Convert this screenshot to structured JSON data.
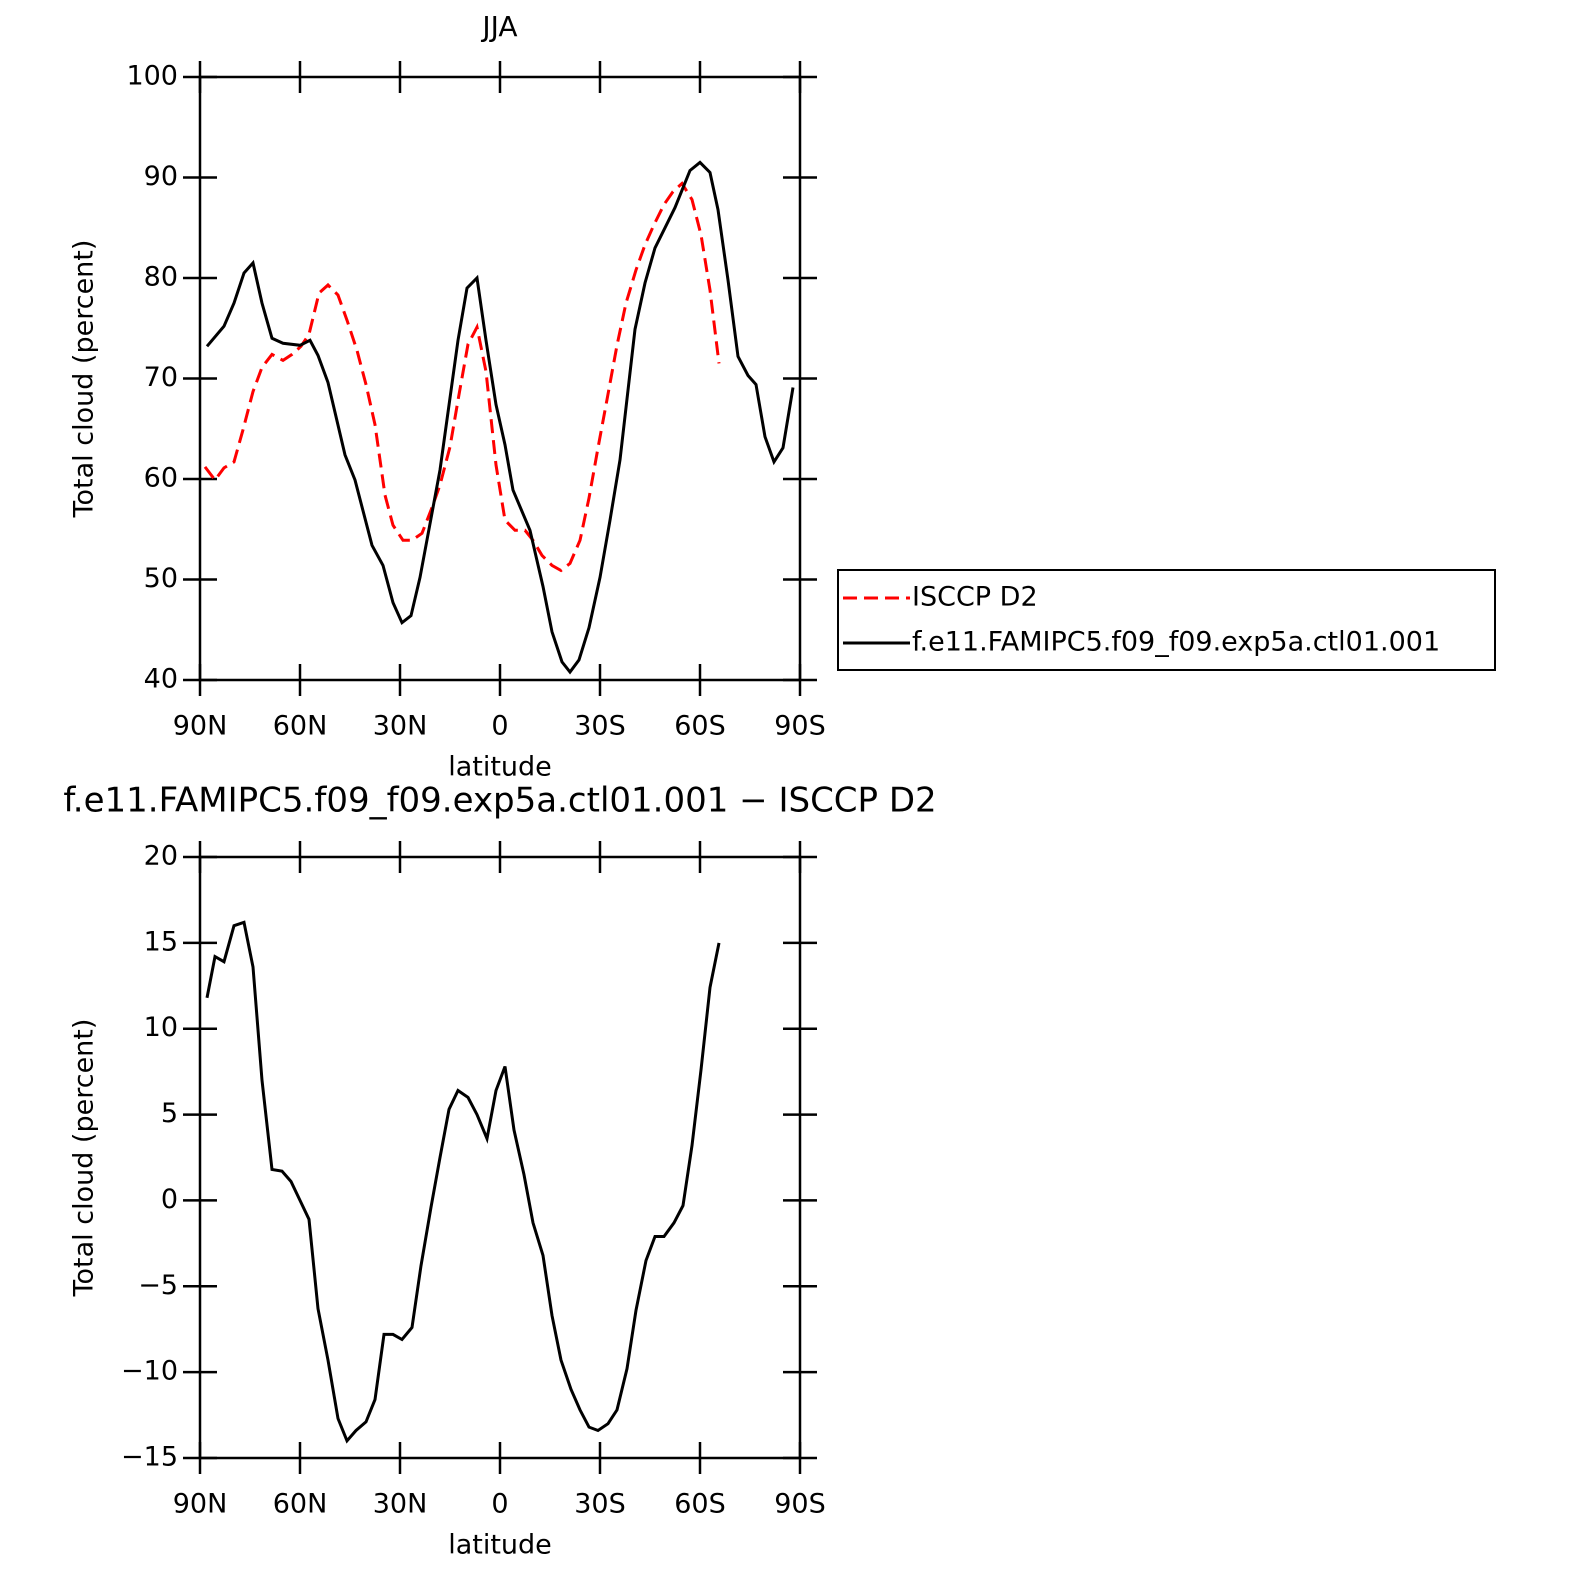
{
  "chart_data": [
    {
      "type": "line",
      "title": "JJA",
      "x_label": "latitude",
      "y_label": "Total cloud (percent)",
      "xlim": [
        90,
        -90
      ],
      "xticks": [
        {
          "value": 90,
          "label": "90N"
        },
        {
          "value": 60,
          "label": "60N"
        },
        {
          "value": 30,
          "label": "30N"
        },
        0,
        {
          "value": -30,
          "label": "30S"
        },
        {
          "value": -60,
          "label": "60S"
        },
        {
          "value": -90,
          "label": "90S"
        }
      ],
      "ylim": [
        40,
        100
      ],
      "yticks": [
        40,
        50,
        60,
        70,
        80,
        90,
        100
      ],
      "legend": "right",
      "series": [
        {
          "name": "ISCCP D2",
          "color": "#ff0000",
          "dashed": true,
          "x": [
            88.5,
            85.5,
            82.8,
            79.8,
            77.1,
            74.1,
            71.4,
            68.4,
            65.1,
            62.4,
            59.7,
            57.3,
            54.3,
            51.6,
            48.6,
            45.9,
            42.9,
            40.2,
            37.5,
            34.5,
            32.1,
            29.1,
            26.4,
            23.4,
            20.7,
            18,
            15,
            12.3,
            9.6,
            6.9,
            4.2,
            1.2,
            -1.5,
            -4.5,
            -7.5,
            -9.9,
            -12.6,
            -15.6,
            -18.3,
            -21,
            -24,
            -26.7,
            -29.4,
            -32.1,
            -35.1,
            -37.8,
            -40.8,
            -43.5,
            -46.2,
            -49.2,
            -51.9,
            -54.6,
            -57.6,
            -60.3,
            -63,
            -65.7
          ],
          "values": [
            61.2,
            59.9,
            61.1,
            61.7,
            64.9,
            68.7,
            71.1,
            72.4,
            71.8,
            72.4,
            73.2,
            74.4,
            78.5,
            79.3,
            78.3,
            75.8,
            72.8,
            69.4,
            65.4,
            58.4,
            55.4,
            53.9,
            53.9,
            54.6,
            56.9,
            59.4,
            63.2,
            68.4,
            73.4,
            75.1,
            70.7,
            61.4,
            55.9,
            54.9,
            54.9,
            53.9,
            52.4,
            51.4,
            50.9,
            51.6,
            53.9,
            58.1,
            63.1,
            67.9,
            73.3,
            77.5,
            80.8,
            83.3,
            85.3,
            87.3,
            88.6,
            89.4,
            87.8,
            84.3,
            78.8,
            71.5
          ]
        },
        {
          "name": "f.e11.FAMIPC5.f09_f09.exp5a.ctl01.001",
          "color": "#000000",
          "dashed": false,
          "x": [
            87.9,
            82.8,
            79.8,
            76.8,
            74.1,
            71.4,
            68.4,
            65.1,
            60,
            57,
            54.6,
            51.6,
            46.5,
            43.5,
            38.4,
            35.1,
            32.1,
            29.4,
            26.7,
            24,
            18,
            12.6,
            9.9,
            6.9,
            4.2,
            1.2,
            -1.5,
            -3.9,
            -9,
            -12.9,
            -15.6,
            -18.6,
            -21,
            -23.7,
            -26.7,
            -30,
            -33,
            -36,
            -40.5,
            -43.5,
            -46.5,
            -49.5,
            -52.5,
            -57,
            -60,
            -63,
            -65.4,
            -68.4,
            -71.4,
            -74.4,
            -76.8,
            -79.5,
            -82.2,
            -84.9,
            -87.9
          ],
          "values": [
            73.2,
            75.2,
            77.5,
            80.5,
            81.5,
            77.5,
            74.0,
            73.5,
            73.3,
            73.8,
            72.3,
            69.6,
            62.4,
            59.9,
            53.4,
            51.4,
            47.7,
            45.7,
            46.4,
            50.2,
            60.9,
            73.8,
            79.0,
            80.0,
            73.8,
            67.4,
            63.4,
            58.9,
            54.9,
            49.3,
            44.8,
            41.8,
            40.8,
            42.0,
            45.2,
            50.2,
            55.9,
            61.9,
            74.9,
            79.5,
            83.0,
            85.0,
            87.0,
            90.7,
            91.5,
            90.5,
            86.8,
            79.8,
            72.2,
            70.3,
            69.4,
            64.2,
            61.7,
            63.1,
            69.1
          ]
        }
      ]
    },
    {
      "type": "line",
      "title": "f.e11.FAMIPC5.f09_f09.exp5a.ctl01.001 − ISCCP D2",
      "x_label": "latitude",
      "y_label": "Total cloud (percent)",
      "xlim": [
        90,
        -90
      ],
      "xticks": [
        {
          "value": 90,
          "label": "90N"
        },
        {
          "value": 60,
          "label": "60N"
        },
        {
          "value": 30,
          "label": "30N"
        },
        0,
        {
          "value": -30,
          "label": "30S"
        },
        {
          "value": -60,
          "label": "60S"
        },
        {
          "value": -90,
          "label": "90S"
        }
      ],
      "ylim": [
        -15,
        20
      ],
      "yticks": [
        {
          "value": -15,
          "label": "−15"
        },
        {
          "value": -10,
          "label": "−10"
        },
        {
          "value": -5,
          "label": "−5"
        },
        0,
        5,
        10,
        15,
        20
      ],
      "color": "#000000",
      "x": [
        87.9,
        85.5,
        82.8,
        79.8,
        76.8,
        74.1,
        71.4,
        68.4,
        65.4,
        62.7,
        60,
        57.3,
        54.6,
        51.6,
        48.6,
        45.9,
        43.2,
        40.2,
        37.5,
        34.8,
        32.1,
        29.4,
        26.4,
        23.7,
        20.7,
        18,
        15.3,
        12.6,
        9.6,
        6.9,
        3.9,
        1.2,
        -1.5,
        -4.2,
        -7.2,
        -9.9,
        -12.9,
        -15.6,
        -18.3,
        -21.3,
        -24,
        -26.7,
        -29.4,
        -32.4,
        -35.1,
        -38.1,
        -40.8,
        -43.8,
        -46.5,
        -49.2,
        -52.2,
        -54.9,
        -57.6,
        -60.3,
        -63,
        -65.7
      ],
      "values": [
        11.8,
        14.2,
        13.9,
        16.0,
        16.2,
        13.6,
        7.0,
        1.8,
        1.7,
        1.1,
        0.0,
        -1.1,
        -6.3,
        -9.3,
        -12.7,
        -14.0,
        -13.4,
        -12.9,
        -11.6,
        -7.8,
        -7.8,
        -8.1,
        -7.4,
        -3.8,
        -0.4,
        2.5,
        5.3,
        6.4,
        6.0,
        5.0,
        3.6,
        6.4,
        7.8,
        4.1,
        1.5,
        -1.3,
        -3.2,
        -6.7,
        -9.3,
        -11.0,
        -12.2,
        -13.2,
        -13.4,
        -13.0,
        -12.2,
        -9.8,
        -6.4,
        -3.5,
        -2.1,
        -2.1,
        -1.3,
        -0.3,
        3.2,
        7.6,
        12.4,
        15.0
      ]
    }
  ]
}
